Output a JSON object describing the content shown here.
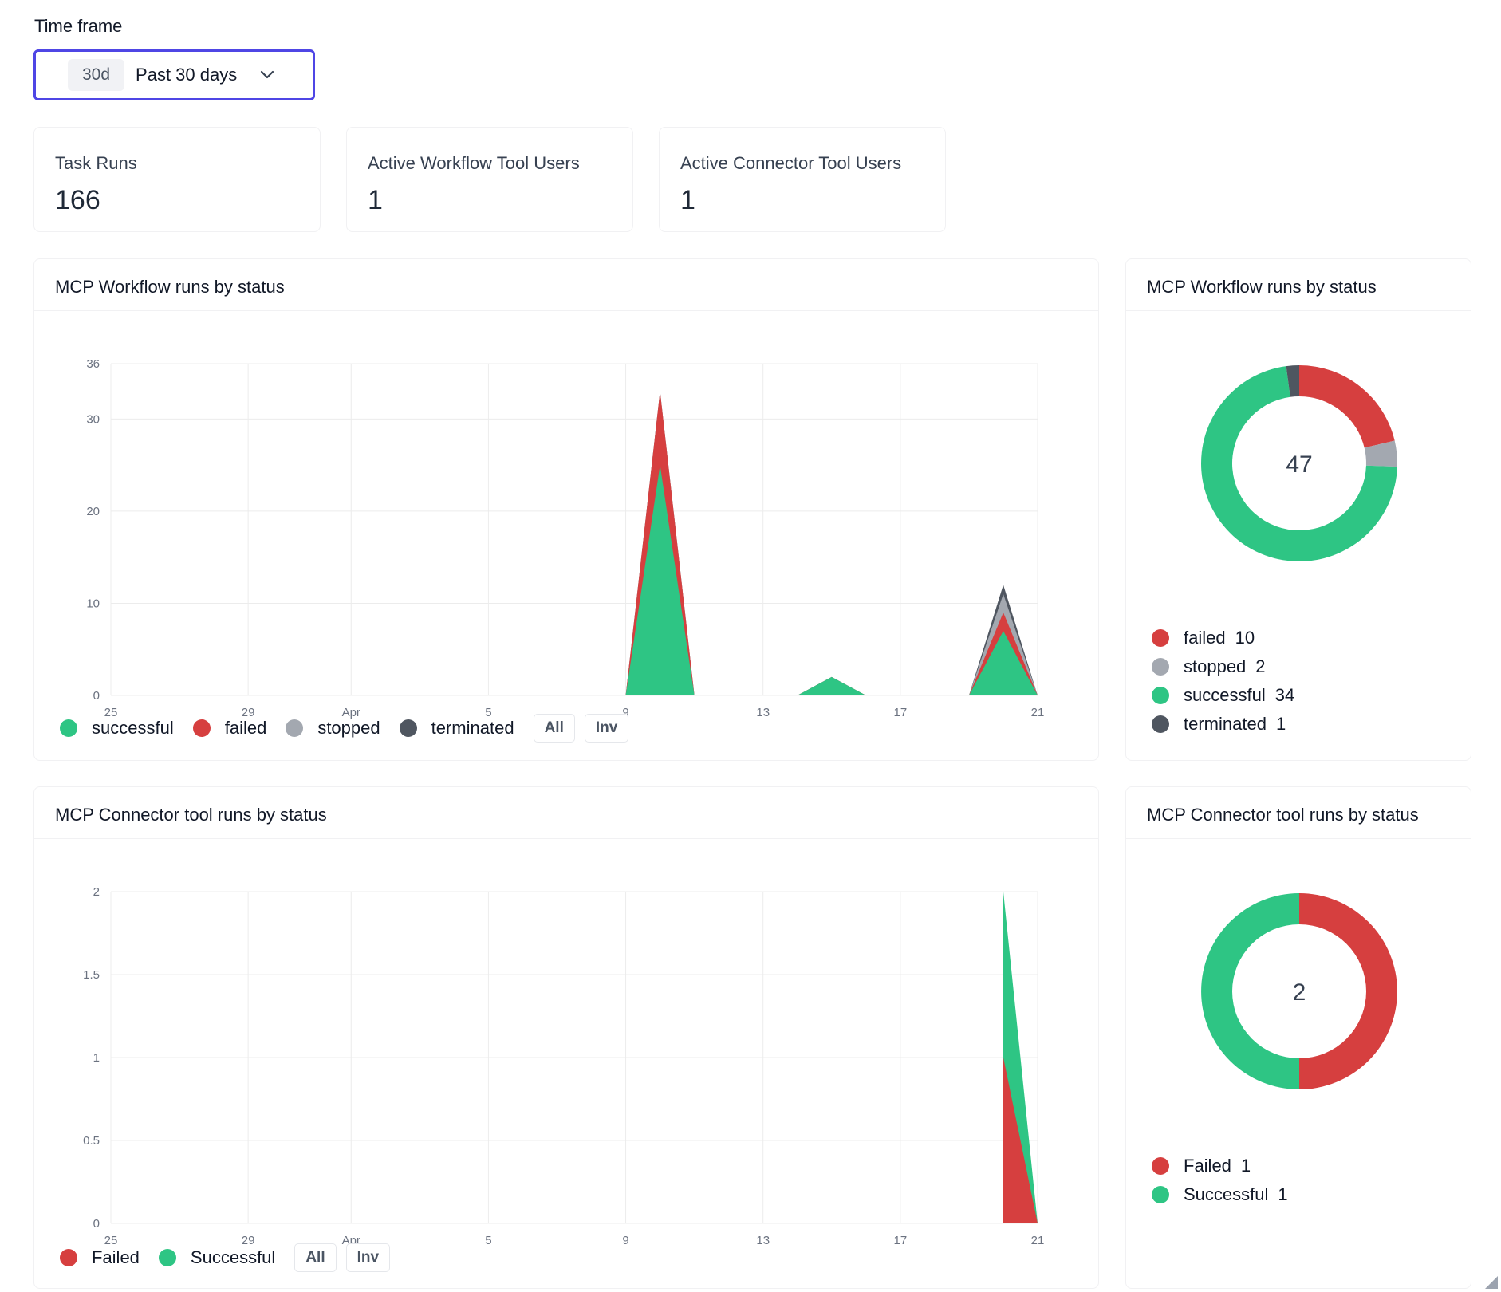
{
  "timeframe": {
    "label": "Time frame",
    "badge": "30d",
    "value": "Past 30 days"
  },
  "stats": [
    {
      "label": "Task Runs",
      "value": "166"
    },
    {
      "label": "Active Workflow Tool Users",
      "value": "1"
    },
    {
      "label": "Active Connector Tool Users",
      "value": "1"
    }
  ],
  "controls": {
    "all_label": "All",
    "inv_label": "Inv"
  },
  "colors": {
    "successful": "#2ec584",
    "failed": "#d63f3f",
    "stopped": "#a3a8b0",
    "terminated": "#4f5660",
    "accent": "#4f46e5"
  },
  "workflow_area": {
    "title": "MCP Workflow runs by status",
    "legend": [
      {
        "label": "successful",
        "color": "#2ec584"
      },
      {
        "label": "failed",
        "color": "#d63f3f"
      },
      {
        "label": "stopped",
        "color": "#a3a8b0"
      },
      {
        "label": "terminated",
        "color": "#4f5660"
      }
    ]
  },
  "workflow_pie": {
    "title": "MCP Workflow runs by status",
    "total": "47",
    "legend": [
      {
        "label": "failed",
        "count": "10",
        "color": "#d63f3f"
      },
      {
        "label": "stopped",
        "count": "2",
        "color": "#a3a8b0"
      },
      {
        "label": "successful",
        "count": "34",
        "color": "#2ec584"
      },
      {
        "label": "terminated",
        "count": "1",
        "color": "#4f5660"
      }
    ]
  },
  "connector_area": {
    "title": "MCP Connector tool runs by status",
    "legend": [
      {
        "label": "Failed",
        "color": "#d63f3f"
      },
      {
        "label": "Successful",
        "color": "#2ec584"
      }
    ]
  },
  "connector_pie": {
    "title": "MCP Connector tool runs by status",
    "total": "2",
    "legend": [
      {
        "label": "Failed",
        "count": "1",
        "color": "#d63f3f"
      },
      {
        "label": "Successful",
        "count": "1",
        "color": "#2ec584"
      }
    ]
  },
  "chart_data": [
    {
      "type": "area",
      "stacked": true,
      "title": "MCP Workflow runs by status",
      "x_tick_labels": [
        "25",
        "29",
        "Apr",
        "5",
        "9",
        "13",
        "17",
        "21"
      ],
      "x_tick_days": [
        0,
        4,
        7,
        11,
        15,
        19,
        23,
        27
      ],
      "x": [
        15,
        16,
        17,
        20,
        21,
        22,
        25,
        26,
        27
      ],
      "ylim": [
        0,
        36
      ],
      "yticks": [
        0,
        10,
        20,
        30,
        36
      ],
      "series": [
        {
          "name": "successful",
          "values": [
            0,
            25,
            0,
            0,
            2,
            0,
            0,
            7,
            0
          ]
        },
        {
          "name": "failed",
          "values": [
            0,
            8,
            0,
            0,
            0,
            0,
            0,
            2,
            0
          ]
        },
        {
          "name": "stopped",
          "values": [
            0,
            0,
            0,
            0,
            0,
            0,
            0,
            2,
            0
          ]
        },
        {
          "name": "terminated",
          "values": [
            0,
            0,
            0,
            0,
            0,
            0,
            0,
            1,
            0
          ]
        }
      ]
    },
    {
      "type": "pie",
      "title": "MCP Workflow runs by status",
      "categories": [
        "failed",
        "stopped",
        "successful",
        "terminated"
      ],
      "values": [
        10,
        2,
        34,
        1
      ]
    },
    {
      "type": "area",
      "stacked": true,
      "title": "MCP Connector tool runs by status",
      "x_tick_labels": [
        "25",
        "29",
        "Apr",
        "5",
        "9",
        "13",
        "17",
        "21"
      ],
      "x_tick_days": [
        0,
        4,
        7,
        11,
        15,
        19,
        23,
        27
      ],
      "x": [
        26,
        27
      ],
      "ylim": [
        0,
        2
      ],
      "yticks": [
        0,
        0.5,
        1,
        1.5,
        2
      ],
      "series": [
        {
          "name": "Failed",
          "values": [
            1,
            0
          ]
        },
        {
          "name": "Successful",
          "values": [
            1,
            0
          ]
        }
      ]
    },
    {
      "type": "pie",
      "title": "MCP Connector tool runs by status",
      "categories": [
        "Failed",
        "Successful"
      ],
      "values": [
        1,
        1
      ]
    }
  ]
}
